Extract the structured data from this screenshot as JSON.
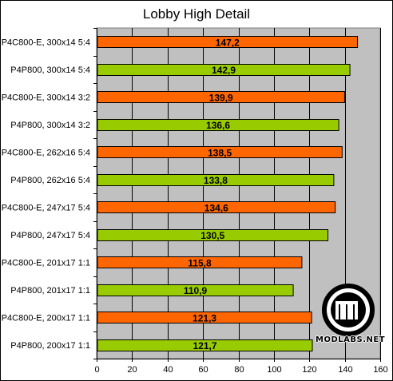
{
  "chart_data": {
    "type": "bar",
    "orientation": "horizontal",
    "title": "Lobby High Detail",
    "categories": [
      "P4C800-E, 300x14 5:4",
      "P4P800, 300x14 5:4",
      "P4C800-E, 300x14 3:2",
      "P4P800, 300x14 3:2",
      "P4C800-E, 262x16 5:4",
      "P4P800, 262x16 5:4",
      "P4C800-E, 247x17 5:4",
      "P4P800, 247x17 5:4",
      "P4C800-E, 201x17 1:1",
      "P4P800, 201x17 1:1",
      "P4C800-E, 200x17 1:1",
      "P4P800, 200x17 1:1"
    ],
    "values": [
      147.2,
      142.9,
      139.9,
      136.6,
      138.5,
      133.8,
      134.6,
      130.5,
      115.8,
      110.9,
      121.3,
      121.7
    ],
    "value_labels": [
      "147,2",
      "142,9",
      "139,9",
      "136,6",
      "138,5",
      "133,8",
      "134,6",
      "130,5",
      "115,8",
      "110,9",
      "121,3",
      "121,7"
    ],
    "bar_colors": [
      "#ff6600",
      "#99cc00",
      "#ff6600",
      "#99cc00",
      "#ff6600",
      "#99cc00",
      "#ff6600",
      "#99cc00",
      "#ff6600",
      "#99cc00",
      "#ff6600",
      "#99cc00"
    ],
    "xlim": [
      0,
      160
    ],
    "xticks": [
      0,
      20,
      40,
      60,
      80,
      100,
      120,
      140,
      160
    ],
    "xtick_labels": [
      "0",
      "20",
      "40",
      "60",
      "80",
      "100",
      "120",
      "140",
      "160"
    ],
    "xlabel": "",
    "ylabel": "",
    "grid": "vertical major gridlines",
    "plot_background": "#c0c0c0",
    "legend": "none"
  },
  "watermark": {
    "text": "MODLABS.NET"
  }
}
